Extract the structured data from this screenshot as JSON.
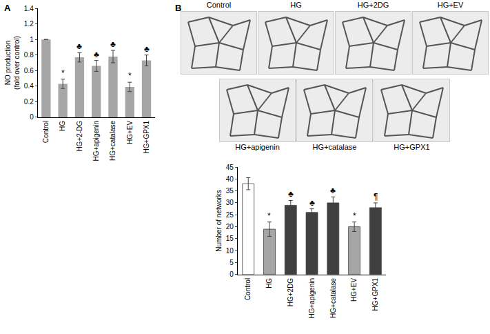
{
  "chart_data": [
    {
      "type": "bar",
      "title": "A",
      "y_label": "NO production\n(fold over control)",
      "categories": [
        "Control",
        "HG",
        "HG+2-DG",
        "HG+apigenin",
        "HG+catalase",
        "HG+EV",
        "HG+GPX1"
      ],
      "values": [
        1,
        0.43,
        0.77,
        0.66,
        0.78,
        0.39,
        0.73
      ],
      "errors": [
        0,
        0.06,
        0.06,
        0.07,
        0.08,
        0.06,
        0.07
      ],
      "significance": [
        null,
        "*",
        "♣",
        "♣",
        "♣",
        "*",
        "♣"
      ],
      "color": "#a6a6a6",
      "ylim": [
        0,
        1.4
      ],
      "yticks": [
        0,
        0.2,
        0.4,
        0.6,
        0.8,
        1,
        {
          "value": 1.2,
          "label": "1.2"
        },
        {
          "value": 1.4,
          "label": "1.4"
        }
      ],
      "grid": false
    },
    {
      "type": "bar",
      "title": "B",
      "y_label": "Number of networks",
      "categories": [
        "Control",
        "HG",
        "HG+2DG",
        "HG+apigenin",
        "HG+catalase",
        "HG+EV",
        "HG+GPX1"
      ],
      "values": [
        38,
        19,
        29,
        26,
        30,
        20,
        28
      ],
      "errors": [
        2.5,
        3,
        2,
        1.5,
        2.5,
        2,
        2
      ],
      "significance": [
        null,
        "*",
        "♣",
        "♣",
        "♣",
        "*",
        "¶"
      ],
      "colors": [
        "#ffffff",
        "#a6a6a6",
        "#404040",
        "#404040",
        "#404040",
        "#a6a6a6",
        "#404040"
      ],
      "ylim": [
        0,
        45
      ],
      "yticks": [
        0,
        5,
        10,
        15,
        20,
        25,
        30,
        35,
        40,
        45
      ],
      "grid": false
    }
  ],
  "micrographs": {
    "labels": [
      "Control",
      "HG",
      "HG+2DG",
      "HG+EV",
      "HG+apigenin",
      "HG+catalase",
      "HG+GPX1"
    ]
  }
}
